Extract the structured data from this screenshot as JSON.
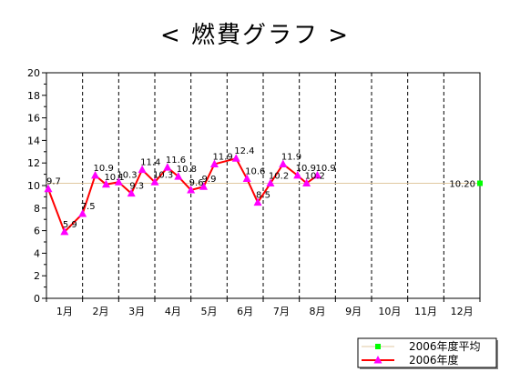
{
  "chart_data": {
    "type": "line",
    "title": "< 燃費グラフ >",
    "xlabel": "",
    "ylabel": "",
    "ylim": [
      0,
      20
    ],
    "y_ticks": [
      "0",
      "2",
      "4",
      "6",
      "8",
      "10",
      "12",
      "14",
      "16",
      "18",
      "20"
    ],
    "categories": [
      "1月",
      "2月",
      "3月",
      "4月",
      "5月",
      "6月",
      "7月",
      "8月",
      "9月",
      "10月",
      "11月",
      "12月"
    ],
    "grid": "vertical dashed lines between months",
    "legend_position": "bottom-right",
    "series": [
      {
        "name": "2006年度",
        "color": "#ff0000",
        "marker_color": "#ff00ff",
        "marker": "triangle",
        "x": [
          0.05,
          0.5,
          1.0,
          1.35,
          1.65,
          2.0,
          2.35,
          2.65,
          3.0,
          3.35,
          3.65,
          4.0,
          4.35,
          4.65,
          5.25,
          5.55,
          5.85,
          6.2,
          6.55,
          6.95,
          7.2,
          7.5
        ],
        "values": [
          9.7,
          5.9,
          7.5,
          10.9,
          10.1,
          10.3,
          9.3,
          11.4,
          10.3,
          11.6,
          10.8,
          9.6,
          9.9,
          11.9,
          12.4,
          10.6,
          8.5,
          10.2,
          11.9,
          10.9,
          10.2,
          10.9
        ],
        "value_labels": [
          "9.7",
          "5.9",
          "7.5",
          "10.9",
          "10.1",
          "10.3",
          "9.3",
          "11.4",
          "10.3",
          "11.6",
          "10.8",
          "9.6",
          "9.9",
          "11.9",
          "12.4",
          "10.6",
          "8.5",
          "10.2",
          "11.9",
          "10.9",
          "10.2",
          "10.9"
        ]
      },
      {
        "name": "2006年度平均",
        "color": "#e0c8a0",
        "marker_color": "#00ff00",
        "marker": "square",
        "value": 10.2,
        "value_label": "10.20"
      }
    ]
  }
}
